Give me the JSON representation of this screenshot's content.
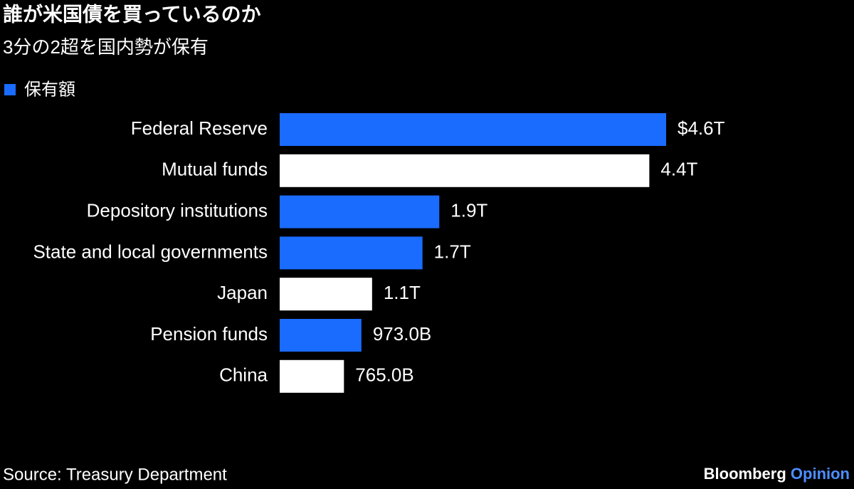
{
  "chart_data": {
    "type": "hbar",
    "title": "誰が米国債を買っているのか",
    "subtitle": "3分の2超を国内勢が保有",
    "categories": [
      "Federal Reserve",
      "Mutual funds",
      "Depository institutions",
      "State and local governments",
      "Japan",
      "Pension funds",
      "China"
    ],
    "series": [
      {
        "name": "保有額",
        "color": "#1a6cff",
        "values": [
          4.6,
          4.4,
          1.9,
          1.7,
          1.1,
          0.973,
          0.765
        ],
        "value_labels": [
          "$4.6T",
          "4.4T",
          "1.9T",
          "1.7T",
          "1.1T",
          "973.0B",
          "765.0B"
        ],
        "colors": [
          "#1a6cff",
          "#ffffff",
          "#1a6cff",
          "#1a6cff",
          "#ffffff",
          "#1a6cff",
          "#ffffff"
        ]
      }
    ],
    "source": "Source: Treasury Department",
    "brand": "Bloomberg",
    "brand_sub": "Opinion"
  }
}
